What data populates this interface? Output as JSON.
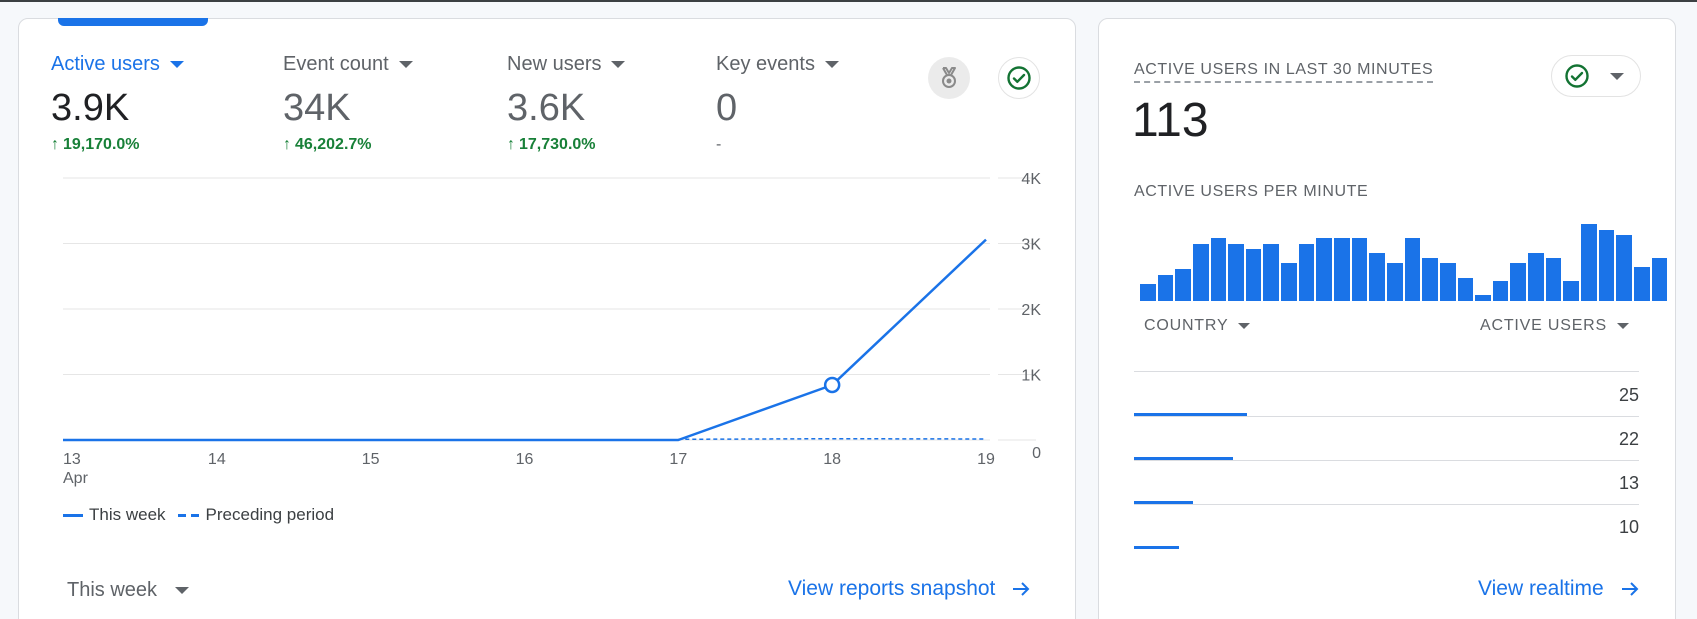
{
  "overview_card": {
    "metrics": [
      {
        "label": "Active users",
        "value": "3.9K",
        "change": "19,170.0%",
        "direction": "up",
        "selected": true
      },
      {
        "label": "Event count",
        "value": "34K",
        "change": "46,202.7%",
        "direction": "up",
        "selected": false
      },
      {
        "label": "New users",
        "value": "3.6K",
        "change": "17,730.0%",
        "direction": "up",
        "selected": false
      },
      {
        "label": "Key events",
        "value": "0",
        "change": "-",
        "direction": "none",
        "selected": false
      }
    ],
    "icons": {
      "insights": "medal-icon",
      "status": "check-circle-icon"
    },
    "legend": {
      "this_week": "This week",
      "preceding": "Preceding period"
    },
    "date_range": "This week",
    "link_label": "View reports snapshot"
  },
  "chart_data": [
    {
      "type": "line",
      "title": "Active users",
      "x": [
        "13",
        "14",
        "15",
        "16",
        "17",
        "18",
        "19"
      ],
      "x_sublabel_first": "Apr",
      "series": [
        {
          "name": "This week",
          "style": "solid",
          "values": [
            0,
            0,
            0,
            0,
            0,
            840,
            3060
          ]
        },
        {
          "name": "Preceding period",
          "style": "dashed",
          "values": [
            null,
            null,
            null,
            null,
            10,
            20,
            15
          ]
        }
      ],
      "highlight_point": {
        "x": "18",
        "series": "This week"
      },
      "y_ticks": [
        0,
        1000,
        2000,
        3000,
        4000
      ],
      "y_tick_labels": [
        "0",
        "1K",
        "2K",
        "3K",
        "4K"
      ],
      "ylim": [
        0,
        4000
      ],
      "ylabel": "",
      "xlabel": "",
      "grid": true,
      "legend_position": "bottom-left"
    },
    {
      "type": "bar",
      "title": "ACTIVE USERS PER MINUTE",
      "values": [
        0.22,
        0.34,
        0.42,
        0.74,
        0.82,
        0.74,
        0.68,
        0.74,
        0.5,
        0.74,
        0.82,
        0.82,
        0.82,
        0.62,
        0.5,
        0.82,
        0.56,
        0.5,
        0.3,
        0.08,
        0.26,
        0.5,
        0.62,
        0.56,
        0.26,
        1.0,
        0.92,
        0.86,
        0.44,
        0.56
      ],
      "value_unit": "relative to max",
      "grid": false
    }
  ],
  "realtime_card": {
    "title": "ACTIVE USERS IN LAST 30 MINUTES",
    "value": "113",
    "subtitle": "ACTIVE USERS PER MINUTE",
    "table": {
      "headers": [
        "COUNTRY",
        "ACTIVE USERS"
      ],
      "rows": [
        {
          "country": "",
          "users": "25",
          "value": 25
        },
        {
          "country": "",
          "users": "22",
          "value": 22
        },
        {
          "country": "",
          "users": "13",
          "value": 13
        },
        {
          "country": "",
          "users": "10",
          "value": 10
        }
      ]
    },
    "link_label": "View realtime"
  },
  "colors": {
    "accent": "#1a73e8",
    "positive": "#188038",
    "muted": "#5f6368",
    "check": "#188038"
  }
}
